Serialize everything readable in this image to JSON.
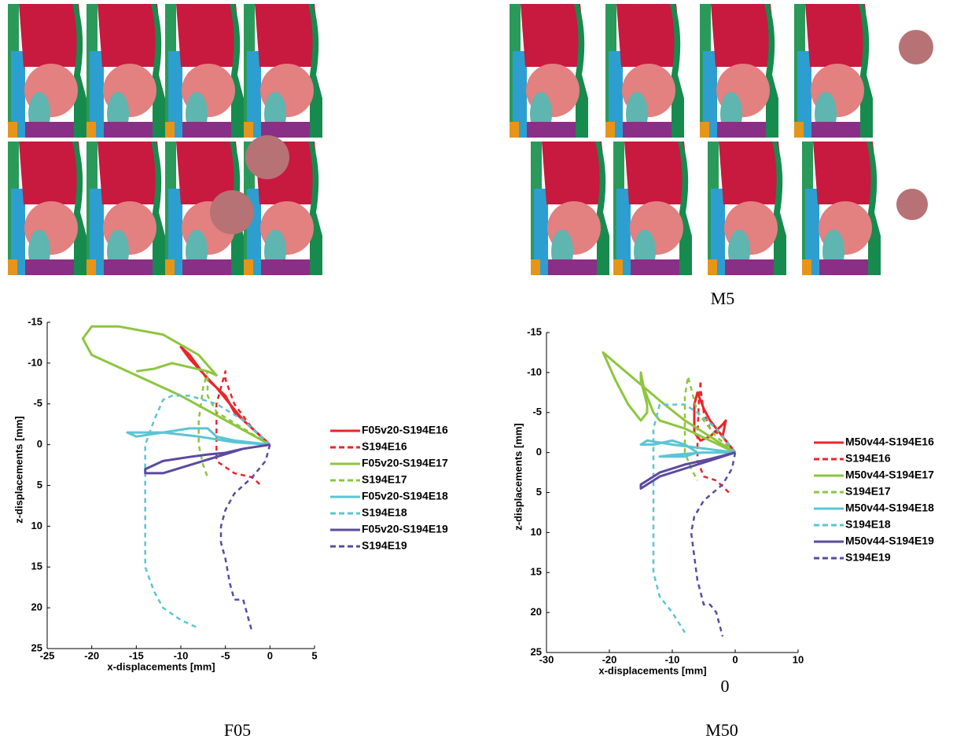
{
  "captions": [
    "M5",
    "0",
    "F05",
    "M50"
  ],
  "chart_data": [
    {
      "type": "line",
      "xlabel": "x-displacements [mm]",
      "ylabel": "z-displacements [mm]",
      "xlim": [
        -25,
        5
      ],
      "xticks": [
        -25,
        -20,
        -15,
        -10,
        -5,
        0,
        5
      ],
      "ylim": [
        25,
        -15
      ],
      "yticks": [
        -15,
        -10,
        -5,
        0,
        5,
        10,
        15,
        20,
        25
      ],
      "y_inverted": true,
      "grid": false,
      "legend": "right",
      "series": [
        {
          "name": "F05v20-S194E16",
          "color": "#e8262a",
          "dashed": false,
          "x": [
            0,
            -3,
            -6,
            -9,
            -10,
            -9,
            -7,
            -5,
            -4,
            -2,
            0
          ],
          "values": [
            0,
            -3,
            -7,
            -10.5,
            -12,
            -11,
            -8,
            -6,
            -4,
            -2,
            0
          ]
        },
        {
          "name": "S194E16",
          "color": "#e8262a",
          "dashed": true,
          "x": [
            0,
            -2,
            -4,
            -5,
            -5,
            -5.5,
            -6,
            -6,
            -6,
            -4,
            -2,
            -1
          ],
          "values": [
            0,
            -2,
            -5,
            -8,
            -9,
            -7,
            -5,
            0,
            2,
            3.5,
            4,
            5
          ]
        },
        {
          "name": "F05v20-S194E17",
          "color": "#8dc63f",
          "dashed": false,
          "x": [
            0,
            -5,
            -10,
            -15,
            -20,
            -21,
            -20,
            -17,
            -12,
            -8,
            -6,
            -7,
            -11,
            -13,
            -15
          ],
          "values": [
            0,
            -3,
            -6,
            -8.5,
            -11,
            -13,
            -14.5,
            -14.5,
            -13.5,
            -11,
            -8.5,
            -9,
            -10,
            -9.3,
            -9
          ]
        },
        {
          "name": "S194E17",
          "color": "#8dc63f",
          "dashed": true,
          "x": [
            0,
            -3,
            -6,
            -7,
            -7,
            -7.5,
            -8,
            -8,
            -7.5,
            -7
          ],
          "values": [
            0,
            -2,
            -4,
            -6,
            -9,
            -7,
            -3,
            0,
            2.5,
            4
          ]
        },
        {
          "name": "F05v20-S194E18",
          "color": "#5bc5d3",
          "dashed": false,
          "x": [
            0,
            -4,
            -8,
            -12,
            -16,
            -15,
            -12,
            -9,
            -7,
            -6.5,
            -6,
            -4,
            0
          ],
          "values": [
            0,
            -0.3,
            -1,
            -1.5,
            -1.5,
            -1,
            -1.5,
            -2,
            -2,
            -1.5,
            -1,
            -0.5,
            0
          ]
        },
        {
          "name": "S194E18",
          "color": "#5bc5d3",
          "dashed": true,
          "x": [
            0,
            -3,
            -6,
            -9,
            -11,
            -12,
            -13,
            -14,
            -14,
            -14,
            -14,
            -13,
            -12,
            -10,
            -8
          ],
          "values": [
            0,
            -3,
            -5,
            -6,
            -6,
            -5.5,
            -3,
            0,
            5,
            10,
            15,
            18,
            20,
            21.5,
            22.5
          ]
        },
        {
          "name": "F05v20-S194E19",
          "color": "#5b4aa0",
          "dashed": false,
          "x": [
            0,
            -3,
            -6,
            -9,
            -12,
            -14,
            -14,
            -12,
            -9,
            -7,
            -5,
            -3,
            0
          ],
          "values": [
            0,
            0.5,
            1.5,
            2.5,
            3.5,
            3.5,
            3,
            2,
            1.5,
            1.2,
            1,
            0.5,
            0
          ]
        },
        {
          "name": "S194E19",
          "color": "#5b4aa0",
          "dashed": true,
          "x": [
            0,
            -0.5,
            -2,
            -4,
            -5,
            -5.5,
            -5.5,
            -5,
            -4.5,
            -4,
            -3,
            -2.5,
            -2
          ],
          "values": [
            0,
            2,
            4,
            6,
            8,
            10,
            12,
            14,
            17,
            19,
            19,
            21,
            23
          ]
        }
      ]
    },
    {
      "type": "line",
      "xlabel": "x-displacements [mm]",
      "ylabel": "z-displacements [mm]",
      "xlim": [
        -30,
        10
      ],
      "xticks": [
        -30,
        -20,
        -10,
        0,
        10
      ],
      "ylim": [
        25,
        -15
      ],
      "yticks": [
        -15,
        -10,
        -5,
        0,
        5,
        10,
        15,
        20,
        25
      ],
      "y_inverted": true,
      "grid": false,
      "legend": "right",
      "series": [
        {
          "name": "M50v44-S194E16",
          "color": "#e8262a",
          "dashed": false,
          "x": [
            0,
            -2,
            -4,
            -5,
            -6,
            -6.5,
            -6.5,
            -5.5,
            -4,
            -2,
            -1.5,
            -2,
            -1,
            0
          ],
          "values": [
            0,
            -2,
            -4,
            -5.5,
            -7.5,
            -6,
            -2.5,
            -1.5,
            -2,
            -3.5,
            -4,
            -2,
            -1,
            0
          ]
        },
        {
          "name": "S194E16",
          "color": "#e8262a",
          "dashed": true,
          "x": [
            0,
            -2,
            -4,
            -5,
            -5.5,
            -5.5,
            -5.8,
            -6,
            -6,
            -5,
            -3,
            -1
          ],
          "values": [
            0,
            -2,
            -3,
            -5,
            -8,
            -9,
            -6,
            -2,
            1,
            3,
            3.5,
            5
          ]
        },
        {
          "name": "M50v44-S194E17",
          "color": "#8dc63f",
          "dashed": false,
          "x": [
            0,
            -4,
            -8,
            -12,
            -15,
            -18,
            -21,
            -19,
            -17,
            -15,
            -14,
            -14,
            -15,
            -15,
            -14.5,
            -13,
            -12,
            -8,
            -4,
            0
          ],
          "values": [
            0,
            -2,
            -4,
            -6.5,
            -8.5,
            -10.5,
            -12.5,
            -9,
            -6,
            -4,
            -5,
            -6,
            -9,
            -10,
            -8,
            -5,
            -4,
            -3,
            -1.5,
            0
          ]
        },
        {
          "name": "S194E17",
          "color": "#8dc63f",
          "dashed": true,
          "x": [
            0,
            -3,
            -6,
            -7,
            -7.5,
            -8,
            -8,
            -8,
            -7,
            -6
          ],
          "values": [
            0,
            -2,
            -5,
            -8,
            -9.5,
            -7,
            -3,
            0,
            2,
            3.5
          ]
        },
        {
          "name": "M50v44-S194E18",
          "color": "#5bc5d3",
          "dashed": false,
          "x": [
            0,
            -5,
            -10,
            -14,
            -15,
            -13,
            -10,
            -8,
            -6,
            -8,
            -12,
            -10,
            -5,
            0
          ],
          "values": [
            0,
            -0.5,
            -1,
            -1.5,
            -1,
            -1,
            -1.5,
            -1,
            0,
            0.5,
            0.5,
            0.3,
            0,
            0
          ]
        },
        {
          "name": "S194E18",
          "color": "#5bc5d3",
          "dashed": true,
          "x": [
            0,
            -3,
            -6,
            -8,
            -10,
            -12,
            -13,
            -13,
            -13,
            -13,
            -13,
            -12,
            -10,
            -8
          ],
          "values": [
            0,
            -3,
            -5,
            -6,
            -6,
            -6,
            -3,
            0,
            5,
            10,
            15,
            18,
            20,
            22.5
          ]
        },
        {
          "name": "M50v44-S194E19",
          "color": "#5b4aa0",
          "dashed": false,
          "x": [
            0,
            -4,
            -8,
            -12,
            -15,
            -15,
            -12,
            -8,
            -4,
            0
          ],
          "values": [
            0,
            1,
            2,
            3,
            4.5,
            4,
            2.5,
            1.5,
            0.8,
            0
          ]
        },
        {
          "name": "S194E19",
          "color": "#5b4aa0",
          "dashed": true,
          "x": [
            0,
            -0.5,
            -2,
            -5,
            -6.5,
            -7,
            -6.5,
            -6,
            -5,
            -4,
            -3,
            -2
          ],
          "values": [
            0,
            2,
            4,
            6,
            8,
            10,
            13,
            16,
            19,
            19,
            20,
            23
          ]
        }
      ]
    }
  ]
}
